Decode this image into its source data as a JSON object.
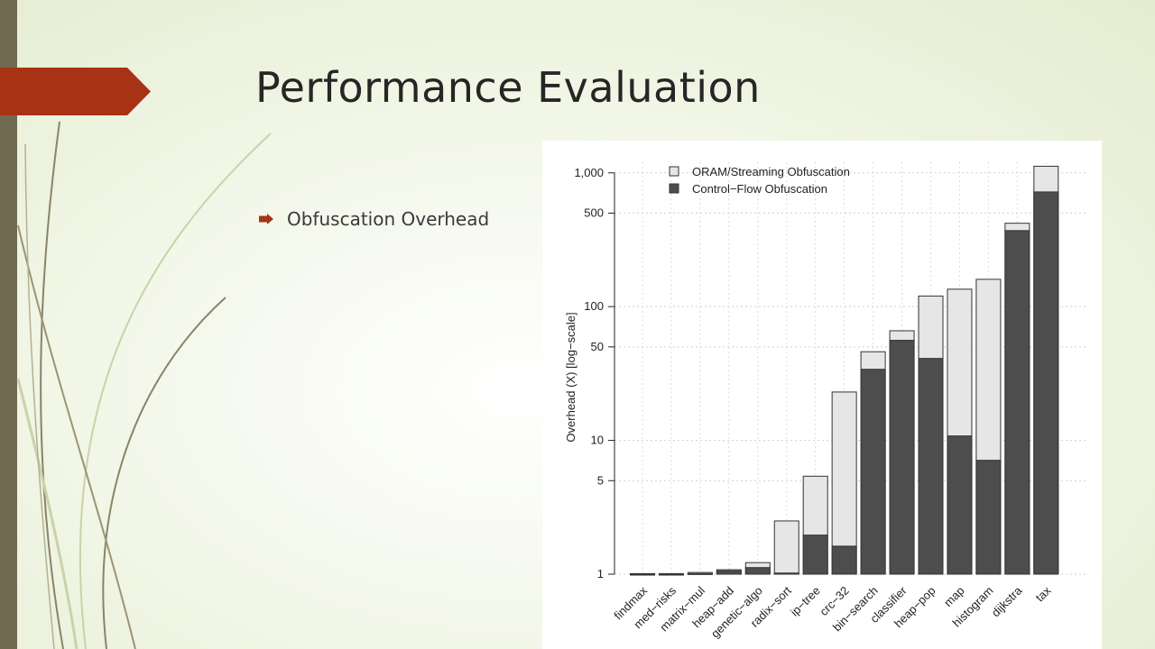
{
  "slide": {
    "title": "Performance Evaluation",
    "bullet": "Obfuscation Overhead",
    "accent_color": "#a83214",
    "bar_color": "#6f6a50"
  },
  "chart_data": {
    "type": "bar",
    "stacked": "overlay",
    "ylabel": "Overhead (X) [log−scale]",
    "xlabel": "",
    "yscale": "log",
    "ylim": [
      1,
      1200
    ],
    "yticks": [
      1,
      5,
      10,
      50,
      100,
      500,
      1000
    ],
    "ytick_labels": [
      "1",
      "5",
      "10",
      "50",
      "100",
      "500",
      "1,000"
    ],
    "grid": true,
    "legend_position": "top-left",
    "categories": [
      "findmax",
      "med−risks",
      "matrix−mul",
      "heap−add",
      "genetic−algo",
      "radix−sort",
      "ip−tree",
      "crc−32",
      "bin−search",
      "classifier",
      "heap−pop",
      "map",
      "histogram",
      "dijkstra",
      "tax"
    ],
    "series": [
      {
        "name": "ORAM/Streaming Obfuscation",
        "color": "#e6e6e6",
        "values": [
          1.01,
          1.01,
          1.03,
          1.08,
          1.22,
          2.5,
          5.4,
          23,
          46,
          66,
          120,
          135,
          160,
          420,
          1120
        ]
      },
      {
        "name": "Control−Flow Obfuscation",
        "color": "#4d4d4d",
        "values": [
          1.0,
          1.0,
          1.01,
          1.06,
          1.12,
          1.02,
          1.96,
          1.62,
          34,
          56,
          41,
          10.8,
          7.1,
          370,
          720
        ]
      }
    ]
  }
}
